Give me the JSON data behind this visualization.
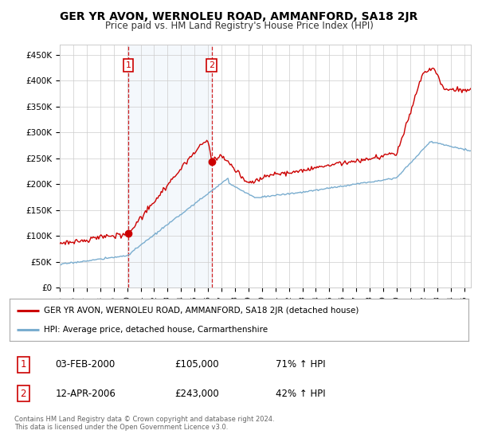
{
  "title": "GER YR AVON, WERNOLEU ROAD, AMMANFORD, SA18 2JR",
  "subtitle": "Price paid vs. HM Land Registry's House Price Index (HPI)",
  "ylabel_ticks": [
    "£0",
    "£50K",
    "£100K",
    "£150K",
    "£200K",
    "£250K",
    "£300K",
    "£350K",
    "£400K",
    "£450K"
  ],
  "ytick_values": [
    0,
    50000,
    100000,
    150000,
    200000,
    250000,
    300000,
    350000,
    400000,
    450000
  ],
  "ylim": [
    0,
    470000
  ],
  "purchase1_date": 2000.09,
  "purchase1_price": 105000,
  "purchase1_label": "1",
  "purchase2_date": 2006.28,
  "purchase2_price": 243000,
  "purchase2_label": "2",
  "legend_line1": "GER YR AVON, WERNOLEU ROAD, AMMANFORD, SA18 2JR (detached house)",
  "legend_line2": "HPI: Average price, detached house, Carmarthenshire",
  "table_row1_num": "1",
  "table_row1_date": "03-FEB-2000",
  "table_row1_price": "£105,000",
  "table_row1_hpi": "71% ↑ HPI",
  "table_row2_num": "2",
  "table_row2_date": "12-APR-2006",
  "table_row2_price": "£243,000",
  "table_row2_hpi": "42% ↑ HPI",
  "footnote": "Contains HM Land Registry data © Crown copyright and database right 2024.\nThis data is licensed under the Open Government Licence v3.0.",
  "line_color_red": "#cc0000",
  "line_color_blue": "#7aadcf",
  "vline_color": "#cc0000",
  "bg_color": "#ffffff",
  "grid_color": "#cccccc",
  "highlight_bg": "#ddeeff"
}
